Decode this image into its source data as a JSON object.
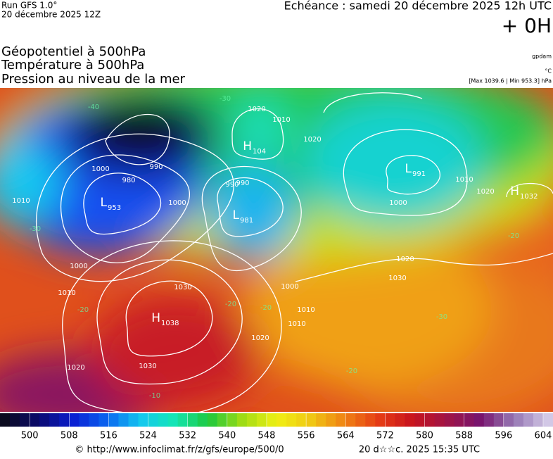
{
  "header": {
    "run": "Run GFS 1.0°",
    "run_date": "20 décembre 2025 12Z",
    "valid": "Echéance : samedi 20 décembre 2025 12h UTC",
    "lead": "+ 0H"
  },
  "titles": [
    "Géopotentiel à 500hPa",
    "Température à 500hPa",
    "Pression au niveau de la mer"
  ],
  "units": {
    "geopotential": "gpdam",
    "temperature": "°C",
    "pressure": "[Max 1039.6 | Min 953.3] hPa"
  },
  "centers": [
    {
      "letter": "H",
      "value": "104"
    },
    {
      "letter": "L",
      "value": "953"
    },
    {
      "letter": "L",
      "value": "981"
    },
    {
      "letter": "L",
      "value": "991"
    },
    {
      "letter": "H",
      "value": "1032"
    },
    {
      "letter": "H",
      "value": "1038"
    }
  ],
  "isobar_labels": [
    "1000",
    "990",
    "980",
    "990",
    "1000",
    "1010",
    "1020",
    "1010",
    "990",
    "1000",
    "1010",
    "1020",
    "1030",
    "1030",
    "1020",
    "1010",
    "1000",
    "1020",
    "1010",
    "1020",
    "1030",
    "1000",
    "1010",
    "1020"
  ],
  "temperature_labels": [
    "-40",
    "-30",
    "-30",
    "-20",
    "-20",
    "-20",
    "-20",
    "-30",
    "-20",
    "-10"
  ],
  "scale": {
    "range": [
      494,
      606
    ],
    "step": 2,
    "ticks": [
      500,
      508,
      516,
      524,
      532,
      540,
      548,
      556,
      564,
      572,
      580,
      588,
      596,
      604
    ],
    "colors": [
      "#0a0a1e",
      "#0a0a6e",
      "#0a1ed2",
      "#0a64f0",
      "#14c8f0",
      "#14e6b4",
      "#1ec83c",
      "#a0dc14",
      "#f0f014",
      "#f0c814",
      "#f08214",
      "#e63c14",
      "#c8141e",
      "#a01446",
      "#78146e",
      "#9678b4",
      "#d2c8e6"
    ]
  },
  "footer": {
    "source": "© http://www.infoclimat.fr/z/gfs/europe/500/0",
    "generated": "20 d☆☆c. 2025 15:35 UTC"
  }
}
